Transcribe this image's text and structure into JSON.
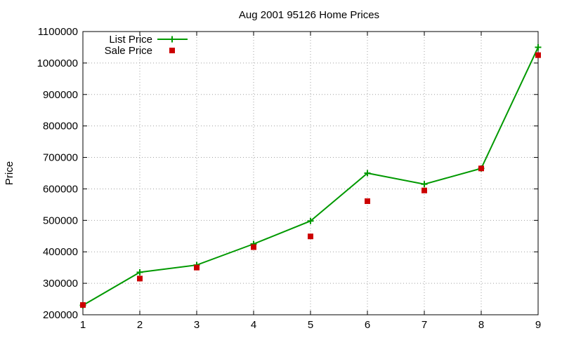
{
  "chart_data": {
    "type": "line",
    "title": "Aug 2001 95126 Home Prices",
    "xlabel": "",
    "ylabel": "Price",
    "x": [
      1,
      2,
      3,
      4,
      5,
      6,
      7,
      8,
      9
    ],
    "xlim": [
      1,
      9
    ],
    "ylim": [
      200000,
      1100000
    ],
    "xticks": [
      "1",
      "2",
      "3",
      "4",
      "5",
      "6",
      "7",
      "8",
      "9"
    ],
    "yticks": [
      "200000",
      "300000",
      "400000",
      "500000",
      "600000",
      "700000",
      "800000",
      "900000",
      "1000000",
      "1100000"
    ],
    "grid": true,
    "legend_position": "top-left",
    "series": [
      {
        "name": "List Price",
        "style": "line-with-plus-markers",
        "color": "#009900",
        "values": [
          230000,
          335000,
          358000,
          425000,
          498000,
          650000,
          615000,
          665000,
          1050000
        ]
      },
      {
        "name": "Sale Price",
        "style": "square-markers",
        "color": "#cc0000",
        "values": [
          231000,
          315000,
          350000,
          415000,
          449000,
          561000,
          595000,
          665000,
          1025000
        ]
      }
    ]
  }
}
